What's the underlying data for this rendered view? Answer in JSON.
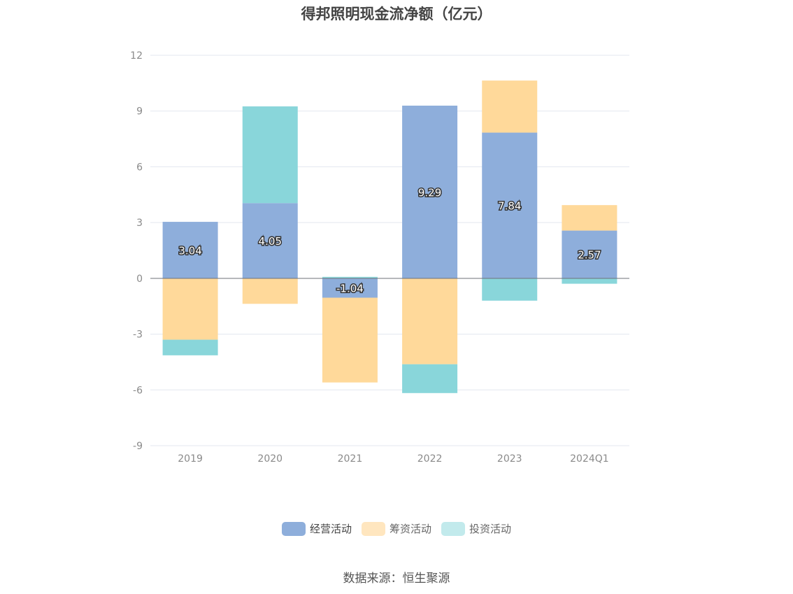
{
  "chart_data": {
    "type": "bar",
    "stacked": true,
    "title": "得邦照明现金流净额（亿元）",
    "categories": [
      "2019",
      "2020",
      "2021",
      "2022",
      "2023",
      "2024Q1"
    ],
    "series": [
      {
        "name": "经营活动",
        "color": "#8eaedb",
        "values": [
          3.04,
          4.05,
          -1.04,
          9.29,
          7.84,
          2.57
        ],
        "labels": [
          "3.04",
          "4.05",
          "-1.04",
          "9.29",
          "7.84",
          "2.57"
        ]
      },
      {
        "name": "筹资活动",
        "color": "#ffd99a",
        "values": [
          -3.3,
          -1.37,
          -4.56,
          -4.62,
          2.8,
          1.37
        ]
      },
      {
        "name": "投资活动",
        "color": "#89d6da",
        "values": [
          -0.84,
          5.2,
          0.08,
          -1.55,
          -1.2,
          -0.29
        ]
      }
    ],
    "yticks": [
      "12",
      "9",
      "6",
      "3",
      "0",
      "-3",
      "-6",
      "-9"
    ],
    "ylim": [
      -9,
      12
    ],
    "grid": true,
    "legend_position": "bottom"
  },
  "source_text": "数据来源：恒生聚源"
}
